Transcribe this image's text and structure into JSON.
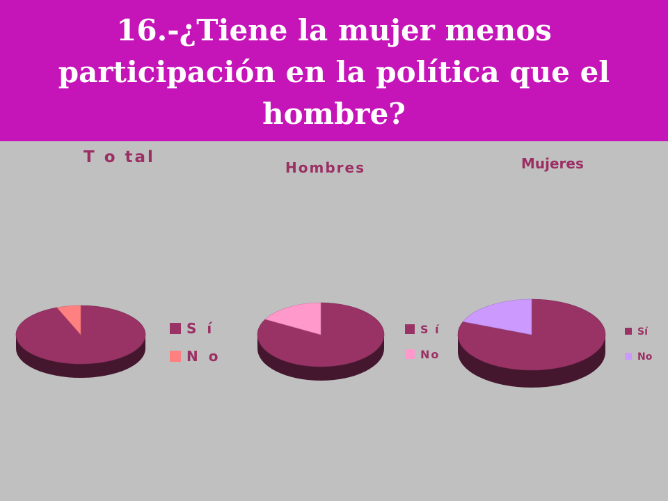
{
  "header": {
    "title": "16.-¿Tiene la mujer menos participación en la política que el hombre?",
    "background": "#c514b7"
  },
  "chart_data": [
    {
      "type": "pie",
      "title": "T o tal",
      "categories": [
        "S í",
        "N o"
      ],
      "values": [
        94,
        6
      ],
      "colors": [
        "#993366",
        "#ff8080"
      ],
      "legend": "right"
    },
    {
      "type": "pie",
      "title": "Hombres",
      "categories": [
        "S í",
        "No"
      ],
      "values": [
        83,
        17
      ],
      "colors": [
        "#993366",
        "#ff99cc"
      ],
      "legend": "right"
    },
    {
      "type": "pie",
      "title": "Mujeres",
      "categories": [
        "Sí",
        "No"
      ],
      "values": [
        81,
        19
      ],
      "colors": [
        "#993366",
        "#cc99ff"
      ],
      "legend": "right"
    }
  ]
}
